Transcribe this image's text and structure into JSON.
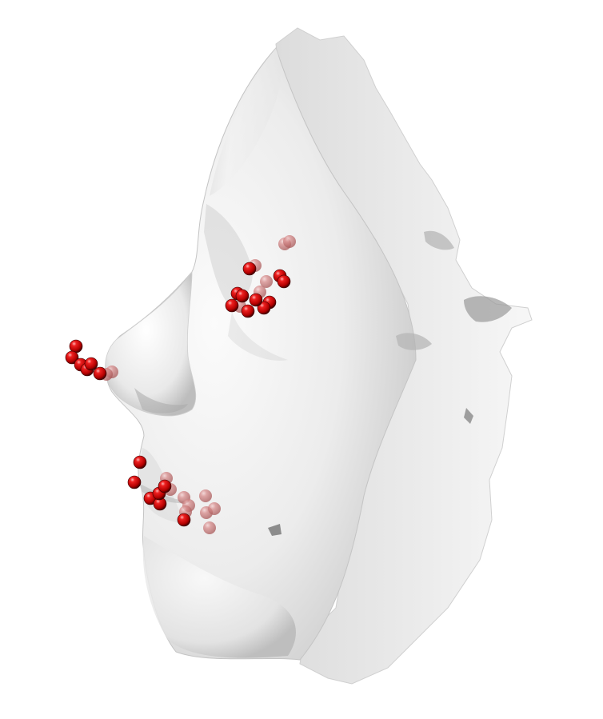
{
  "scene": {
    "background": "#ffffff",
    "mesh_color": "#ececec",
    "landmark_color": "#cc0000",
    "landmark_hidden_color": "#c76a6a",
    "landmark_count": 50,
    "landmark_groups": [
      "nose-tip",
      "eye-corner",
      "mouth-corner"
    ]
  }
}
